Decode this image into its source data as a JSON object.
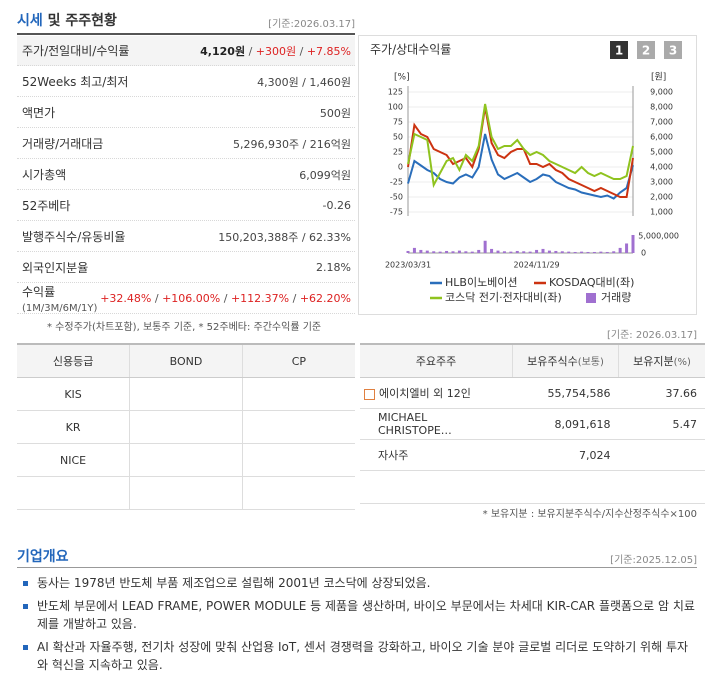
{
  "header": {
    "title_accent": "시세",
    "title": "및 주주현황",
    "date": "[기준:2026.03.17]"
  },
  "quote_table": {
    "rows": [
      {
        "label": "주가/전일대비/수익률",
        "value": [
          {
            "text": "4,120원",
            "color": "#222222",
            "bold": true
          },
          {
            "text": " / ",
            "color": "#555555"
          },
          {
            "text": "+300원",
            "color": "#dd2222"
          },
          {
            "text": " / ",
            "color": "#555555"
          },
          {
            "text": "+7.85%",
            "color": "#dd2222"
          }
        ]
      },
      {
        "label": "52Weeks 최고/최저",
        "value": [
          {
            "text": "4,300원 / 1,460원",
            "color": "#444444"
          }
        ]
      },
      {
        "label": "액면가",
        "value": [
          {
            "text": "500원",
            "color": "#444444"
          }
        ]
      },
      {
        "label": "거래량/거래대금",
        "value": [
          {
            "text": "5,296,930주 / 216억원",
            "color": "#444444"
          }
        ]
      },
      {
        "label": "시가총액",
        "value": [
          {
            "text": "6,099억원",
            "color": "#444444"
          }
        ]
      },
      {
        "label": "52주베타",
        "value": [
          {
            "text": "-0.26",
            "color": "#444444"
          }
        ]
      },
      {
        "label": "발행주식수/유동비율",
        "value": [
          {
            "text": "150,203,388주 / 62.33%",
            "color": "#444444"
          }
        ]
      },
      {
        "label": "외국인지분율",
        "value": [
          {
            "text": "2.18%",
            "color": "#444444"
          }
        ]
      },
      {
        "label": "수익률",
        "label_note": "(1M/3M/6M/1Y)",
        "value": [
          {
            "text": "+32.48%",
            "color": "#dd2222"
          },
          {
            "text": " / ",
            "color": "#555555"
          },
          {
            "text": "+106.00%",
            "color": "#dd2222"
          },
          {
            "text": " / ",
            "color": "#555555"
          },
          {
            "text": "+112.37%",
            "color": "#dd2222"
          },
          {
            "text": " / ",
            "color": "#555555"
          },
          {
            "text": "+62.20%",
            "color": "#dd2222"
          }
        ]
      }
    ],
    "note": "* 수정주가(차트포함), 보통주 기준, * 52주베타: 주간수익률 기준"
  },
  "chart_data": {
    "type": "line",
    "title": "주가/상대수익률",
    "buttons": [
      "1",
      "2",
      "3"
    ],
    "categories": [
      "2023/03/31",
      null,
      null,
      null,
      null,
      null,
      null,
      null,
      null,
      null,
      null,
      null,
      null,
      null,
      null,
      null,
      null,
      null,
      null,
      null,
      "2024/11/29",
      null,
      null,
      null,
      null,
      null,
      null,
      null,
      null,
      null,
      null,
      null,
      null,
      null,
      null,
      null
    ],
    "ylabel": "[%]",
    "y2label": "[원]",
    "ylim": [
      -75,
      125
    ],
    "yticks": [
      125,
      100,
      75,
      50,
      25,
      0,
      -25,
      -50,
      -75
    ],
    "y2lim": [
      1000,
      9000
    ],
    "y2ticks": [
      {
        "value": 9000,
        "label": "9,000"
      },
      {
        "value": 8000,
        "label": "8,000"
      },
      {
        "value": 7000,
        "label": "7,000"
      },
      {
        "value": 6000,
        "label": "6,000"
      },
      {
        "value": 5000,
        "label": "5,000"
      },
      {
        "value": 4000,
        "label": "4,000"
      },
      {
        "value": 3000,
        "label": "3,000"
      },
      {
        "value": 2000,
        "label": "2,000"
      },
      {
        "value": 1000,
        "label": "1,000"
      }
    ],
    "y3lim": [
      0,
      5000000
    ],
    "y3ticks": [
      {
        "value": 5000000,
        "label": "5,000,000"
      },
      0
    ],
    "grid": true,
    "series": [
      {
        "name": "HLB이노베이션",
        "color": "#2a6ebb",
        "axis": "y2",
        "values": [
          2900,
          4400,
          4100,
          3800,
          3600,
          3200,
          3000,
          2900,
          3300,
          3500,
          3300,
          4000,
          6200,
          4500,
          3500,
          3200,
          3400,
          3600,
          3300,
          3000,
          3200,
          3500,
          3400,
          3000,
          2800,
          2600,
          2500,
          2300,
          2200,
          2100,
          2000,
          2100,
          1900,
          2300,
          2600,
          4120
        ]
      },
      {
        "name": "KOSDAQ대비(좌)",
        "color": "#cc3311",
        "values": [
          0,
          70,
          55,
          50,
          30,
          25,
          20,
          5,
          10,
          15,
          0,
          30,
          100,
          40,
          20,
          15,
          25,
          30,
          30,
          5,
          5,
          0,
          5,
          -5,
          -10,
          -20,
          -25,
          -30,
          -35,
          -40,
          -35,
          -40,
          -45,
          -50,
          -50,
          15
        ]
      },
      {
        "name": "코스닥 전기·전자대비(좌)",
        "color": "#8fc31f",
        "values": [
          5,
          55,
          50,
          45,
          -30,
          -10,
          10,
          15,
          -5,
          20,
          10,
          35,
          105,
          50,
          30,
          35,
          35,
          45,
          30,
          20,
          25,
          20,
          10,
          5,
          0,
          -5,
          -10,
          0,
          -10,
          -15,
          -10,
          -15,
          -20,
          -20,
          -15,
          35
        ]
      },
      {
        "name": "거래량",
        "color": "#a070d0",
        "axis": "y3",
        "kind": "bar",
        "values": [
          600000,
          1500000,
          900000,
          700000,
          500000,
          400000,
          600000,
          500000,
          700000,
          500000,
          400000,
          900000,
          3600000,
          1200000,
          700000,
          500000,
          400000,
          600000,
          500000,
          400000,
          900000,
          1200000,
          700000,
          600000,
          500000,
          400000,
          300000,
          400000,
          300000,
          300000,
          400000,
          300000,
          500000,
          1500000,
          2800000,
          5296930
        ]
      }
    ]
  },
  "chart_date": "[기준: 2026.03.17]",
  "credit_table": {
    "headers": [
      "신용등급",
      "BOND",
      "CP"
    ],
    "rows": [
      [
        "KIS"
      ],
      [
        "KR"
      ],
      [
        "NICE"
      ]
    ]
  },
  "shareholder_table": {
    "headers": [
      {
        "text": "주요주주"
      },
      {
        "text": "보유주식수",
        "sub": "(보통)"
      },
      {
        "text": "보유지분",
        "sub": "(%)"
      }
    ],
    "rows": [
      [
        "에이치엘비 외 12인",
        "55,754,586",
        "37.66"
      ],
      [
        "MICHAEL CHRISTOPE…",
        "8,091,618",
        "5.47"
      ],
      [
        "자사주",
        "7,024"
      ]
    ],
    "note": "* 보유지분 : 보유지분주식수/지수산정주식수×100"
  },
  "overview": {
    "title": "기업개요",
    "date": "[기준:2025.12.05]",
    "items": [
      "동사는 1978년 반도체 부품 제조업으로 설립해 2001년 코스닥에 상장되었음.",
      "반도체 부문에서 LEAD FRAME, POWER MODULE 등 제품을 생산하며, 바이오 부문에서는 차세대 KIR-CAR 플랫폼으로 암 치료제를 개발하고 있음.",
      "AI 확산과 자율주행, 전기차 성장에 맞춰 산업용 IoT, 센서 경쟁력을 강화하고, 바이오 기술 분야 글로벌 리더로 도약하기 위해 투자와 혁신을 지속하고 있음."
    ]
  }
}
